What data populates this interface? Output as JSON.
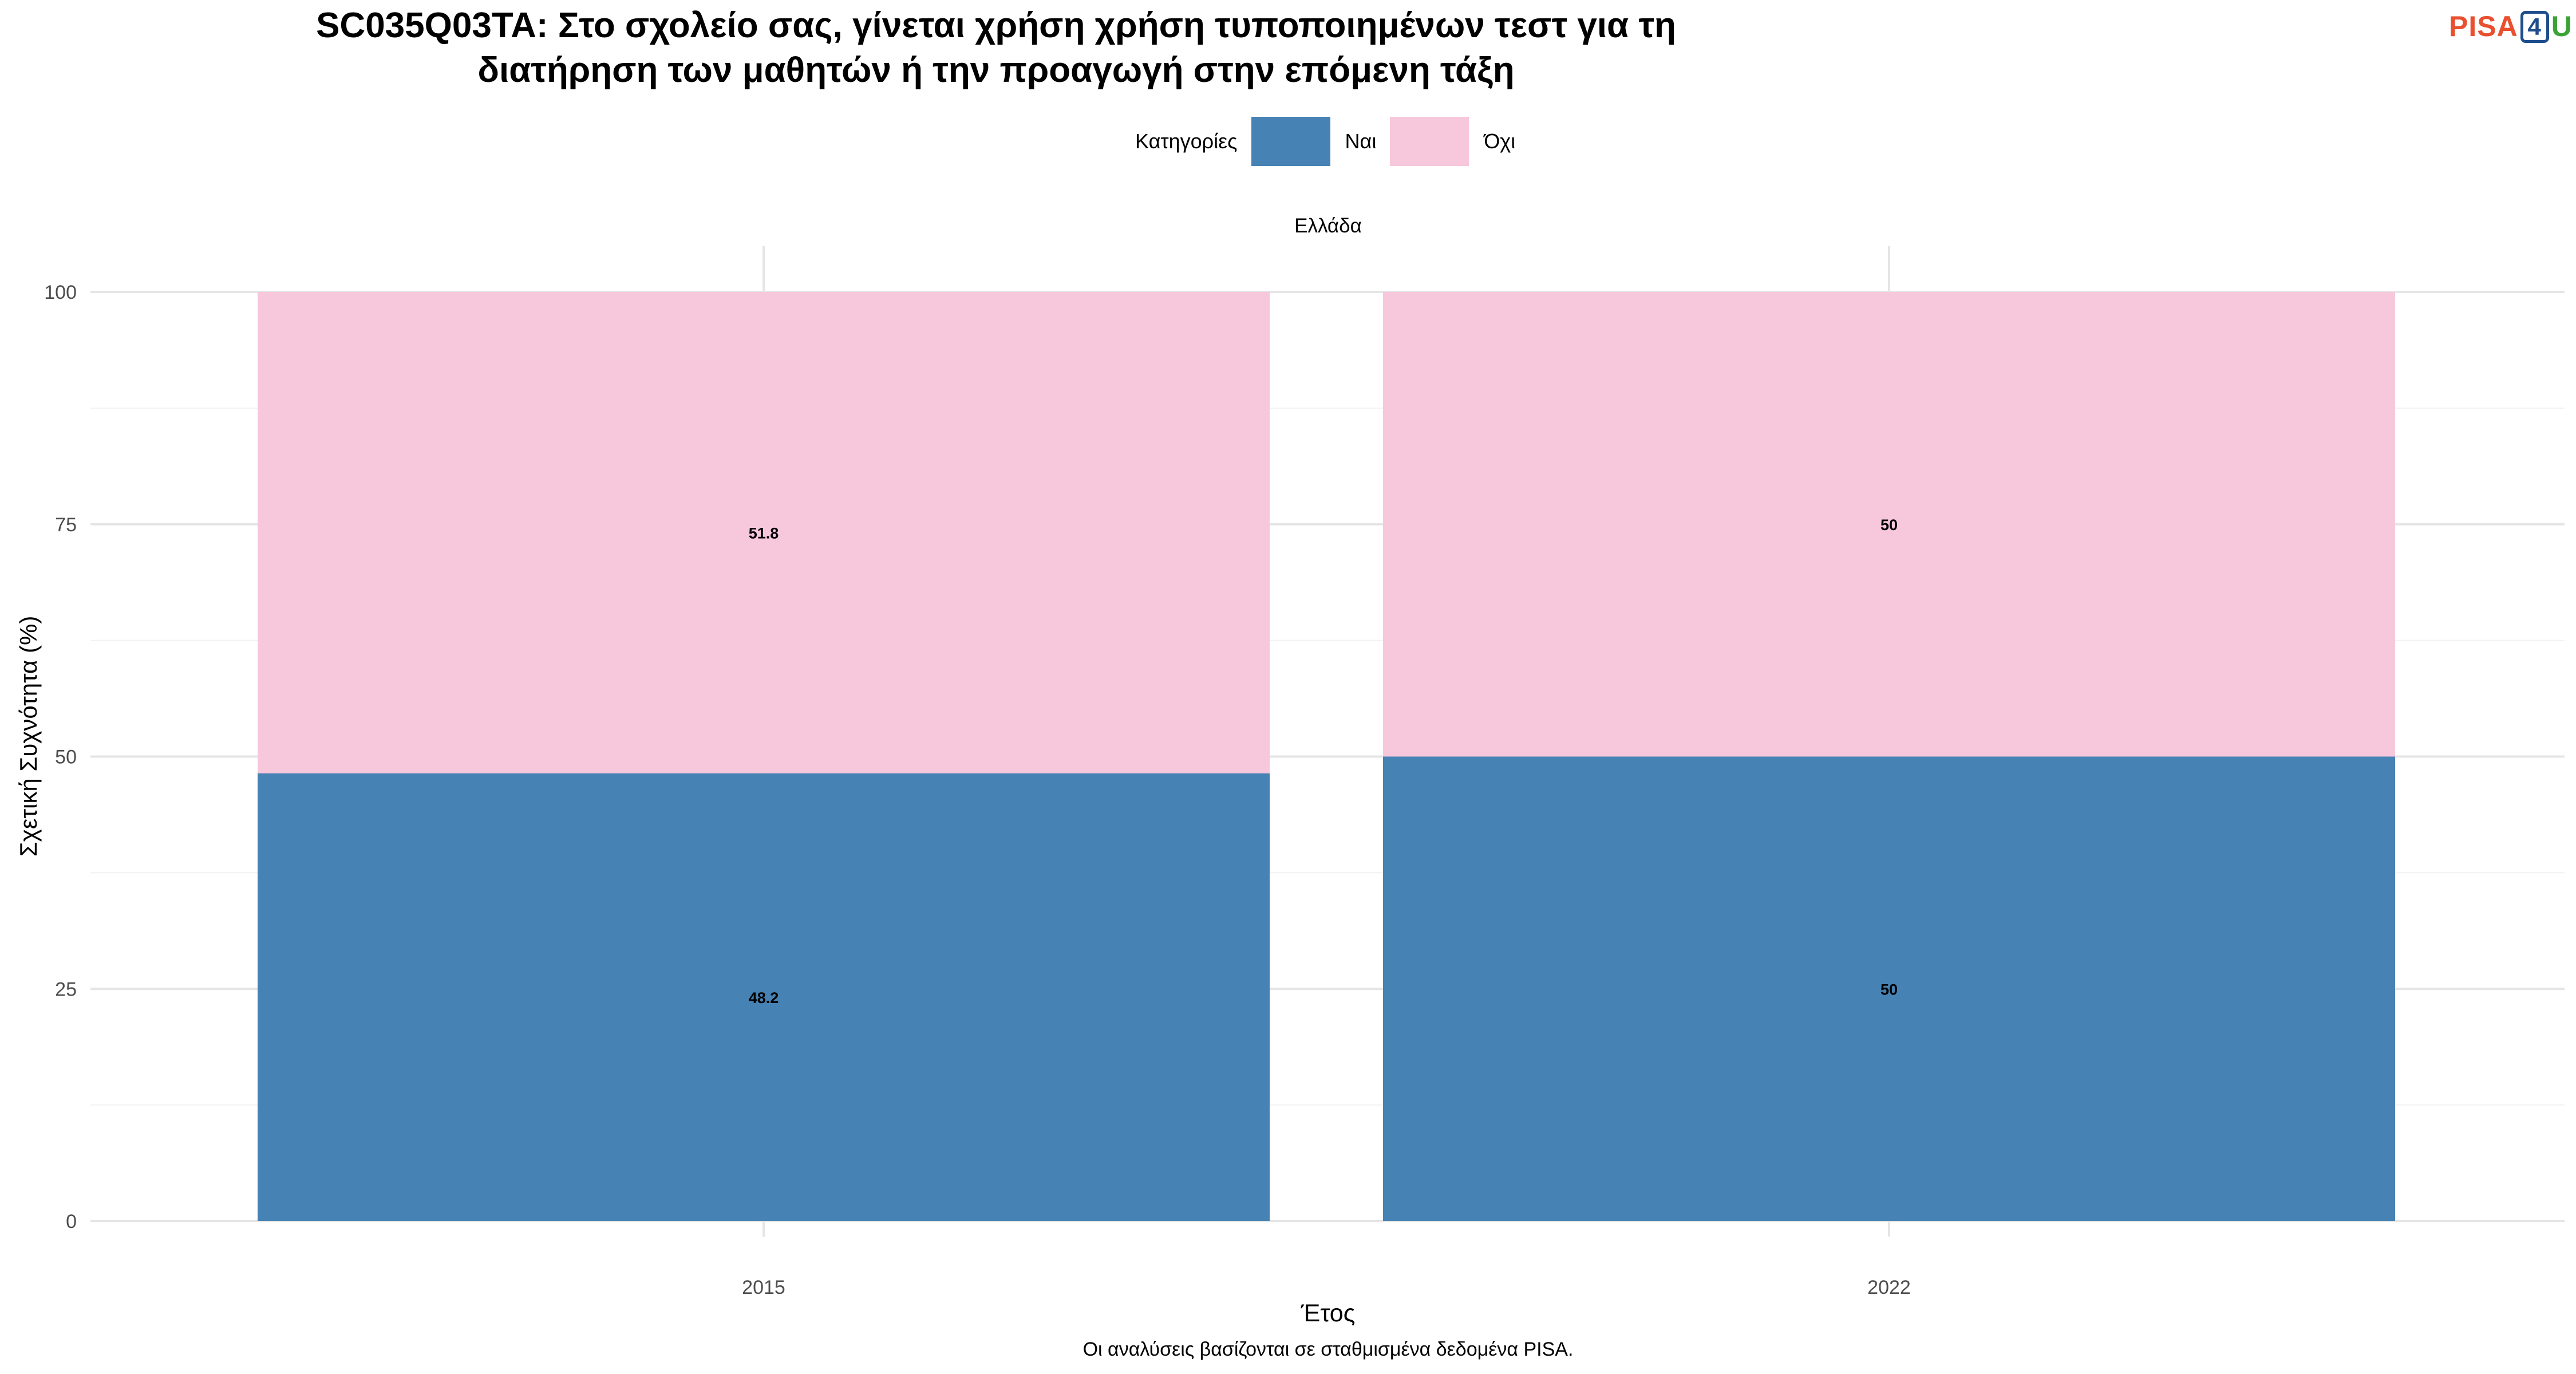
{
  "title_line1": "SC035Q03TA: Στο σχολείο σας, γίνεται χρήση χρήση τυποποιημένων τεστ για τη",
  "title_line2": "διατήρηση των μαθητών ή την προαγωγή στην επόμενη τάξη",
  "logo": {
    "text_a": "PISA",
    "text_b": "4",
    "text_c": "U"
  },
  "legend": {
    "title": "Κατηγορίες",
    "items": [
      {
        "label": "Ναι",
        "color": "#4682b4"
      },
      {
        "label": "Όχι",
        "color": "#f7c7dc"
      }
    ]
  },
  "facet_label": "Ελλάδα",
  "caption": "Οι αναλύσεις βασίζονται σε σταθμισμένα δεδομένα PISA.",
  "chart_data": {
    "type": "bar",
    "stacked": true,
    "categories": [
      "2015",
      "2022"
    ],
    "series": [
      {
        "name": "Ναι",
        "values": [
          48.2,
          50
        ],
        "labels": [
          "48.2",
          "50"
        ],
        "color": "#4682b4"
      },
      {
        "name": "Όχι",
        "values": [
          51.8,
          50
        ],
        "labels": [
          "51.8",
          "50"
        ],
        "color": "#f7c7dc"
      }
    ],
    "xlabel": "Έτος",
    "ylabel": "Σχετική Συχνότητα (%)",
    "ylim": [
      0,
      100
    ],
    "yticks": [
      "0",
      "25",
      "50",
      "75",
      "100"
    ],
    "grid": true,
    "legend_position": "top"
  }
}
